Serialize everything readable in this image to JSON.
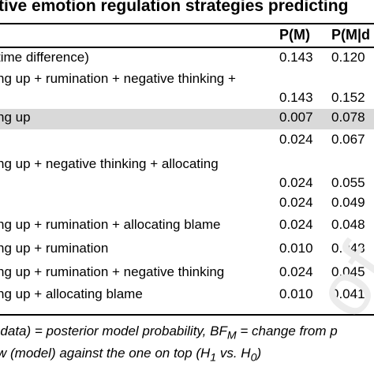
{
  "title": "tive emotion regulation strategies predicting",
  "columns": {
    "model": "",
    "pm": "P(M)",
    "pmd": "P(M|d"
  },
  "rows": [
    {
      "model": "time difference)",
      "pm": "0.143",
      "pmd": "0.120",
      "highlight": false
    },
    {
      "model": "ng up + rumination + negative thinking +",
      "pm": "0.143",
      "pmd": "0.152",
      "highlight": false
    },
    {
      "model": "ng up",
      "pm": "0.007",
      "pmd": "0.078",
      "highlight": true
    },
    {
      "model": "",
      "pm": "0.024",
      "pmd": "0.067",
      "highlight": false
    },
    {
      "model": "ng up + negative thinking + allocating",
      "pm": "0.024",
      "pmd": "0.055",
      "highlight": false
    },
    {
      "model": "",
      "pm": "0.024",
      "pmd": "0.049",
      "highlight": false
    },
    {
      "model": "ng up + rumination + allocating blame",
      "pm": "0.024",
      "pmd": "0.048",
      "highlight": false
    },
    {
      "model": "ng up + rumination",
      "pm": "0.010",
      "pmd": "0.048",
      "highlight": false
    },
    {
      "model": "ng up + rumination + negative thinking",
      "pm": "0.024",
      "pmd": "0.045",
      "highlight": false
    },
    {
      "model": "ng up + allocating blame",
      "pm": "0.010",
      "pmd": "0.041",
      "highlight": false
    }
  ],
  "notes": {
    "line1": "|data) = posterior model probability, BF",
    "line1_sub": "M",
    "line1_rest": " = change from p",
    "line2": "w (model) against the one on top (H",
    "line2_sub1": "1",
    "line2_mid": " vs. H",
    "line2_sub2": "0",
    "line2_end": ")"
  },
  "watermark": "of"
}
